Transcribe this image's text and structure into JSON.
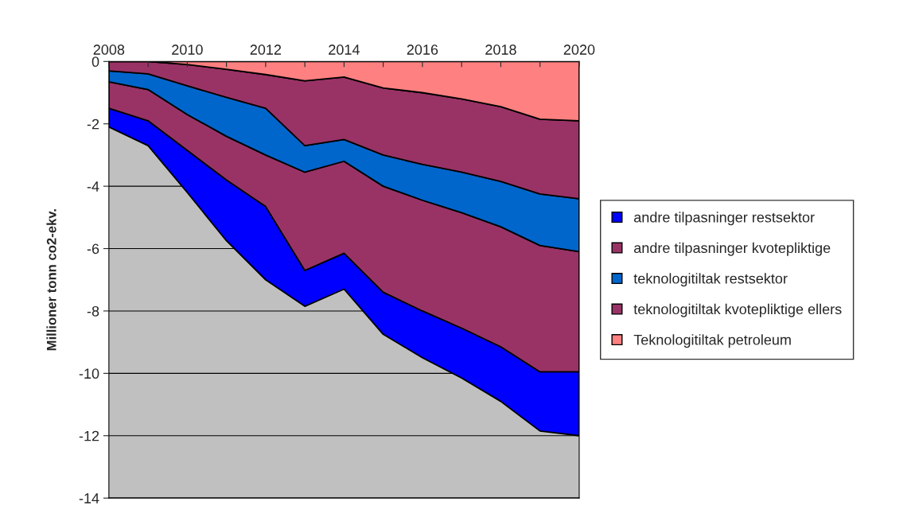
{
  "chart_data": {
    "type": "area",
    "stacked": true,
    "ylabel": "Millioner tonn co2-ekv.",
    "x": [
      2008,
      2009,
      2010,
      2011,
      2012,
      2013,
      2014,
      2015,
      2016,
      2017,
      2018,
      2019,
      2020
    ],
    "xlim": [
      2008,
      2020
    ],
    "xticks": [
      2008,
      {
        "value": 2009,
        "label": null
      },
      2010,
      {
        "value": 2011,
        "label": null
      },
      2012,
      {
        "value": 2013,
        "label": null
      },
      2014,
      {
        "value": 2015,
        "label": null
      },
      2016,
      {
        "value": 2017,
        "label": null
      },
      2018,
      {
        "value": 2019,
        "label": null
      },
      2020
    ],
    "ylim": [
      -14,
      0
    ],
    "yticks": [
      -14,
      -12,
      -10,
      -8,
      -6,
      -4,
      -2,
      0
    ],
    "grid": "y",
    "legend": "right",
    "series": [
      {
        "name": "Teknologitiltak petroleum",
        "color": "#ff8080",
        "values": [
          0,
          0,
          -0.1,
          -0.25,
          -0.42,
          -0.62,
          -0.5,
          -0.85,
          -1.0,
          -1.2,
          -1.45,
          -1.85,
          -1.9
        ]
      },
      {
        "name": "teknologitiltak kvotepliktige ellers",
        "color": "#993366",
        "values": [
          -0.3,
          -0.4,
          -0.68,
          -0.9,
          -1.08,
          -2.08,
          -2.0,
          -2.15,
          -2.3,
          -2.35,
          -2.4,
          -2.4,
          -2.5
        ]
      },
      {
        "name": "teknologitiltak restsektor",
        "color": "#0066cc",
        "values": [
          -0.35,
          -0.5,
          -0.92,
          -1.25,
          -1.5,
          -0.85,
          -0.7,
          -1.0,
          -1.15,
          -1.3,
          -1.45,
          -1.65,
          -1.7
        ]
      },
      {
        "name": "andre tilpasninger kvotepliktige",
        "color": "#993366",
        "values": [
          -0.85,
          -1.0,
          -1.15,
          -1.4,
          -1.65,
          -3.15,
          -2.95,
          -3.4,
          -3.55,
          -3.7,
          -3.85,
          -4.05,
          -3.85
        ]
      },
      {
        "name": "andre tilpasninger restsektor",
        "color": "#0000ff",
        "values": [
          -0.6,
          -0.8,
          -1.35,
          -1.95,
          -2.35,
          -1.15,
          -1.15,
          -1.35,
          -1.5,
          -1.6,
          -1.75,
          -1.9,
          -2.05
        ]
      }
    ]
  }
}
